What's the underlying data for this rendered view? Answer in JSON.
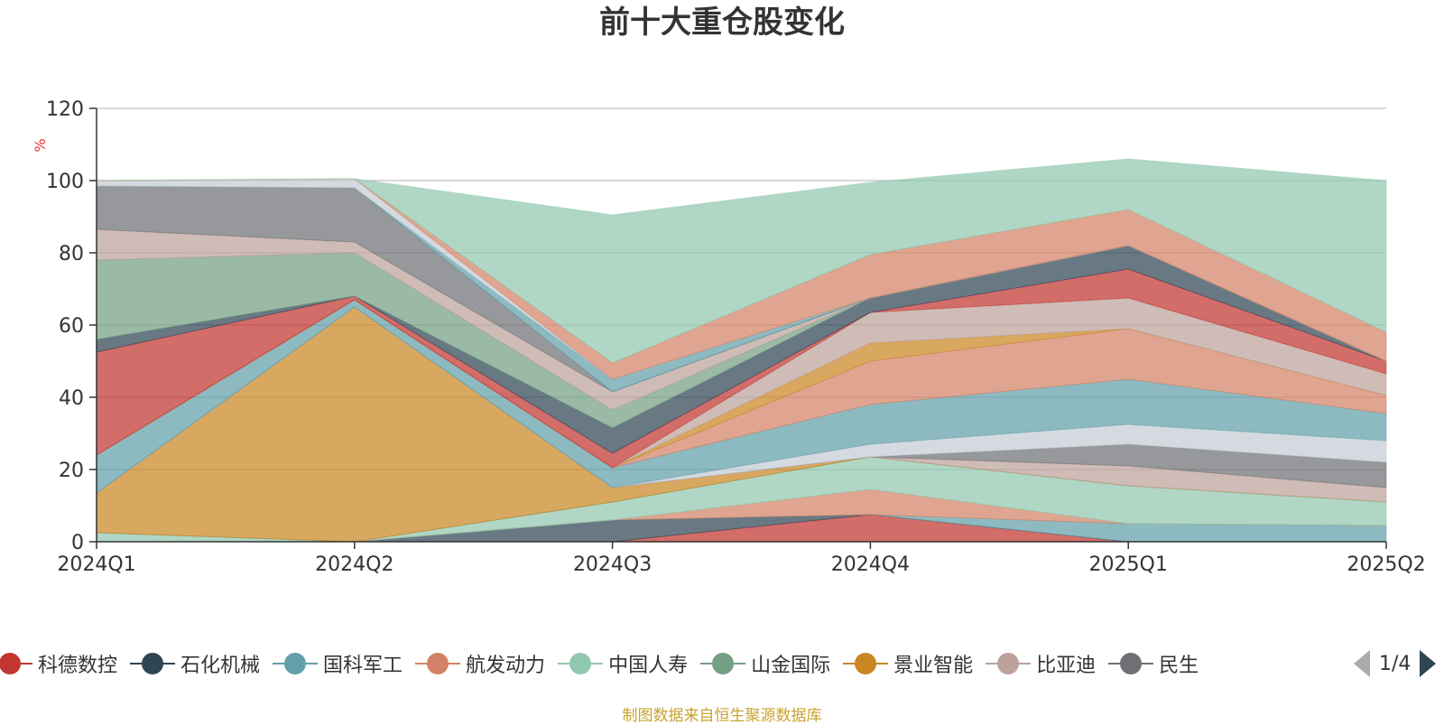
{
  "title": "前十大重仓股变化",
  "footer": "制图数据来自恒生聚源数据库",
  "pager": {
    "text": "1/4"
  },
  "legend": [
    {
      "name": "科德数控",
      "color": "#c23531"
    },
    {
      "name": "石化机械",
      "color": "#2f4554"
    },
    {
      "name": "国科军工",
      "color": "#61a0a8"
    },
    {
      "name": "航发动力",
      "color": "#d48265"
    },
    {
      "name": "中国人寿",
      "color": "#91c7ae"
    },
    {
      "name": "山金国际",
      "color": "#749f83"
    },
    {
      "name": "景业智能",
      "color": "#ca8622"
    },
    {
      "name": "比亚迪",
      "color": "#bda29a"
    },
    {
      "name": "民生",
      "color": "#6e7074"
    }
  ],
  "chart_data": {
    "type": "area",
    "stacked": true,
    "title": "前十大重仓股变化",
    "ylabel": "%",
    "ylim": [
      0,
      120
    ],
    "yticks": [
      0,
      20,
      40,
      60,
      80,
      100,
      120
    ],
    "categories": [
      "2024Q1",
      "2024Q2",
      "2024Q3",
      "2024Q4",
      "2025Q1",
      "2025Q2"
    ],
    "grid": true,
    "legend_position": "bottom",
    "series": [
      {
        "name": "科德数控",
        "color": "#c23531",
        "values": [
          0,
          0,
          0,
          7.5,
          0,
          0
        ]
      },
      {
        "name": "石化机械",
        "color": "#2f4554",
        "values": [
          0,
          0,
          6,
          0,
          0,
          0
        ]
      },
      {
        "name": "国科军工",
        "color": "#61a0a8",
        "values": [
          0,
          0,
          0,
          0,
          5,
          4.5
        ]
      },
      {
        "name": "航发动力",
        "color": "#d48265",
        "values": [
          0,
          0,
          0,
          7,
          0,
          0
        ]
      },
      {
        "name": "中国人寿",
        "color": "#91c7ae",
        "values": [
          2.5,
          0,
          5,
          9,
          10.5,
          6.5
        ]
      },
      {
        "name": "山金国际",
        "color": "#749f83",
        "values": [
          0,
          0,
          0,
          0,
          0,
          0
        ]
      },
      {
        "name": "景业智能",
        "color": "#ca8622",
        "values": [
          11,
          65,
          4,
          0,
          0,
          0
        ]
      },
      {
        "name": "比亚迪",
        "color": "#bda29a",
        "values": [
          0,
          0,
          0,
          0,
          5.5,
          4
        ]
      },
      {
        "name": "民生",
        "color": "#6e7074",
        "values": [
          0,
          0,
          0,
          0,
          6,
          7
        ]
      },
      {
        "name": "",
        "color": "#c4ccd3",
        "values": [
          0,
          0,
          0,
          3.5,
          5.5,
          6
        ]
      },
      {
        "name": "",
        "color": "#61a0a8",
        "values": [
          10.5,
          2,
          5.5,
          11,
          12.5,
          7.5
        ]
      },
      {
        "name": "",
        "color": "#d48265",
        "values": [
          0,
          0,
          0,
          12,
          14,
          5
        ]
      },
      {
        "name": "",
        "color": "#ca8622",
        "values": [
          0,
          0,
          0,
          5,
          0,
          0
        ]
      },
      {
        "name": "",
        "color": "#bda29a",
        "values": [
          0,
          0,
          0,
          8.5,
          8.5,
          6
        ]
      },
      {
        "name": "",
        "color": "#c23531",
        "values": [
          28.5,
          1,
          4,
          0,
          8,
          3.5
        ]
      },
      {
        "name": "",
        "color": "#2f4554",
        "values": [
          3.5,
          0,
          7,
          4,
          6.5,
          0
        ]
      },
      {
        "name": "",
        "color": "#749f83",
        "values": [
          22,
          12,
          5,
          0,
          0,
          0
        ]
      },
      {
        "name": "",
        "color": "#bda29a",
        "values": [
          8.5,
          3,
          5,
          0,
          0,
          0
        ]
      },
      {
        "name": "",
        "color": "#6e7074",
        "values": [
          12,
          15,
          0,
          0,
          0,
          0
        ]
      },
      {
        "name": "",
        "color": "#61a0a8",
        "values": [
          0,
          0,
          3.5,
          0,
          0,
          0
        ]
      },
      {
        "name": "",
        "color": "#c4ccd3",
        "values": [
          1.5,
          2.5,
          0,
          0,
          0,
          0
        ]
      },
      {
        "name": "",
        "color": "#d48265",
        "values": [
          0,
          0,
          4.5,
          12,
          10,
          8
        ]
      },
      {
        "name": "",
        "color": "#91c7ae",
        "values": [
          0,
          0,
          41,
          20,
          14,
          42
        ]
      }
    ]
  }
}
